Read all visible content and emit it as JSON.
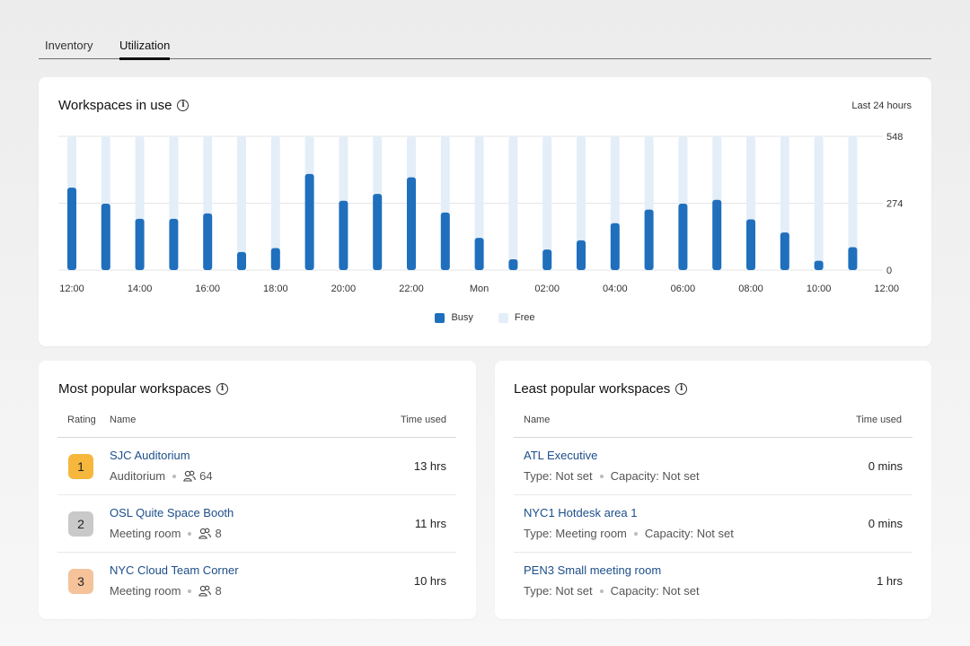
{
  "tabs": [
    {
      "label": "Inventory",
      "active": false
    },
    {
      "label": "Utilization",
      "active": true
    }
  ],
  "usage_card": {
    "title": "Workspaces in use",
    "range": "Last 24 hours",
    "legend": [
      {
        "label": "Busy",
        "color": "#1f6fbd"
      },
      {
        "label": "Free",
        "color": "#e4eef8"
      }
    ]
  },
  "chart_data": {
    "type": "bar",
    "title": "Workspaces in use",
    "y_ticks": [
      "548",
      "274",
      "0"
    ],
    "ylim": [
      0,
      548
    ],
    "x_tick_labels": [
      "12:00",
      "14:00",
      "16:00",
      "18:00",
      "20:00",
      "22:00",
      "Mon",
      "02:00",
      "04:00",
      "06:00",
      "08:00",
      "10:00",
      "12:00"
    ],
    "bar_count": 24,
    "series": [
      {
        "name": "Busy",
        "color": "#1f6fbd",
        "values": [
          338,
          272,
          210,
          210,
          232,
          74,
          90,
          394,
          284,
          312,
          380,
          236,
          132,
          44,
          84,
          122,
          192,
          248,
          272,
          288,
          208,
          154,
          38,
          94
        ]
      },
      {
        "name": "Free",
        "color": "#e4eef8",
        "values": [
          210,
          276,
          338,
          338,
          316,
          474,
          458,
          154,
          264,
          236,
          168,
          312,
          416,
          504,
          464,
          426,
          356,
          300,
          276,
          260,
          340,
          394,
          510,
          454
        ]
      }
    ],
    "grid": true
  },
  "most_popular": {
    "title": "Most popular workspaces",
    "headers": {
      "rating": "Rating",
      "name": "Name",
      "time": "Time used"
    },
    "rows": [
      {
        "rank": "1",
        "rank_color": "#f6b73c",
        "name": "SJC Auditorium",
        "type": "Auditorium",
        "capacity": "64",
        "time": "13 hrs"
      },
      {
        "rank": "2",
        "rank_color": "#c9c9c9",
        "name": "OSL Quite Space Booth",
        "type": "Meeting room",
        "capacity": "8",
        "time": "11 hrs"
      },
      {
        "rank": "3",
        "rank_color": "#f5c29a",
        "name": "NYC Cloud Team Corner",
        "type": "Meeting room",
        "capacity": "8",
        "time": "10 hrs"
      }
    ]
  },
  "least_popular": {
    "title": "Least popular workspaces",
    "headers": {
      "name": "Name",
      "time": "Time used"
    },
    "rows": [
      {
        "name": "ATL Executive",
        "type": "Type: Not set",
        "capacity": "Capacity: Not set",
        "time": "0 mins"
      },
      {
        "name": "NYC1 Hotdesk area 1",
        "type": "Type: Meeting room",
        "capacity": "Capacity: Not set",
        "time": "0 mins"
      },
      {
        "name": "PEN3 Small meeting room",
        "type": "Type: Not set",
        "capacity": "Capacity: Not set",
        "time": "1 hrs"
      }
    ]
  }
}
